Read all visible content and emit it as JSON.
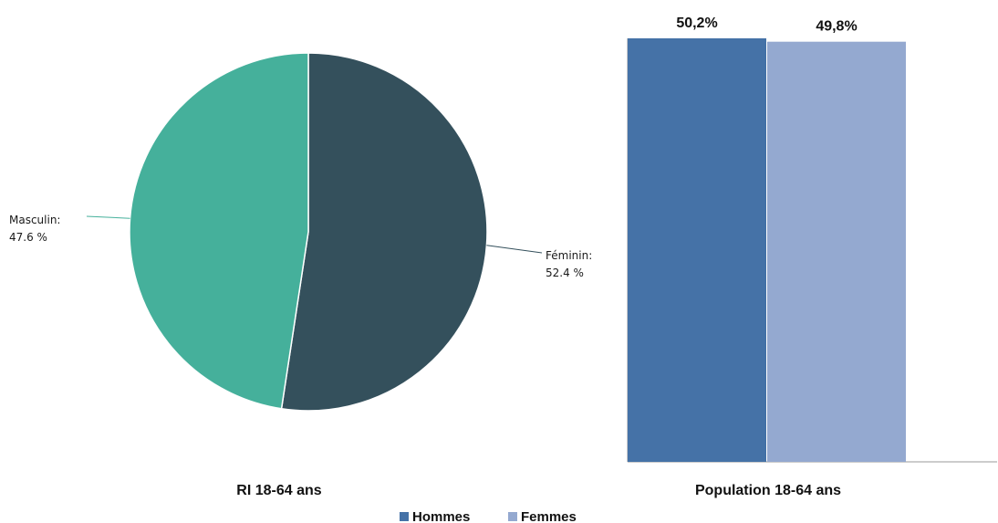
{
  "chart_data": [
    {
      "type": "pie",
      "title": "RI 18-64 ans",
      "slices": [
        {
          "label": "Féminin:",
          "value": 52.4,
          "display": "52.4 %",
          "color": "#34505C"
        },
        {
          "label": "Masculin:",
          "value": 47.6,
          "display": "47.6 %",
          "color": "#45B09B"
        }
      ]
    },
    {
      "type": "bar",
      "title": "Population 18-64 ans",
      "categories": [
        "Hommes",
        "Femmes"
      ],
      "values": [
        50.2,
        49.8
      ],
      "value_labels": [
        "50,2%",
        "49,8%"
      ],
      "colors": [
        "#4572A7",
        "#94A9D0"
      ],
      "ylim": [
        0,
        50.2
      ]
    }
  ],
  "legend": {
    "items": [
      {
        "label": "Hommes",
        "color": "#4572A7"
      },
      {
        "label": "Femmes",
        "color": "#94A9D0"
      }
    ]
  }
}
